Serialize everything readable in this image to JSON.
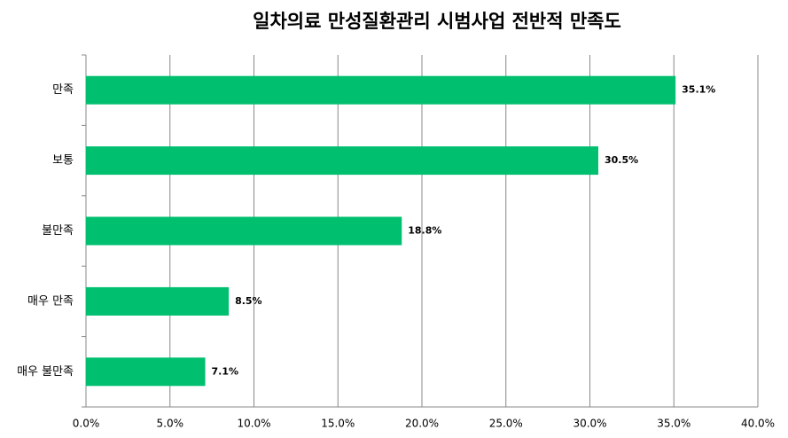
{
  "chart_data": {
    "type": "bar",
    "orientation": "horizontal",
    "title": "일차의료 만성질환관리 시범사업 전반적 만족도",
    "categories": [
      "만족",
      "보통",
      "불만족",
      "매우 만족",
      "매우 불만족"
    ],
    "values": [
      35.1,
      30.5,
      18.8,
      8.5,
      7.1
    ],
    "value_labels": [
      "35.1%",
      "30.5%",
      "18.8%",
      "8.5%",
      "7.1%"
    ],
    "color": "#00bf6f",
    "xlim": [
      0,
      40
    ],
    "xticks": [
      {
        "value": 0,
        "label": "0.0%"
      },
      {
        "value": 5,
        "label": "5.0%"
      },
      {
        "value": 10,
        "label": "10.0%"
      },
      {
        "value": 15,
        "label": "15.0%"
      },
      {
        "value": 20,
        "label": "20.0%"
      },
      {
        "value": 25,
        "label": "25.0%"
      },
      {
        "value": 30,
        "label": "30.0%"
      },
      {
        "value": 35,
        "label": "35.0%"
      },
      {
        "value": 40,
        "label": "40.0%"
      }
    ],
    "grid": true
  }
}
